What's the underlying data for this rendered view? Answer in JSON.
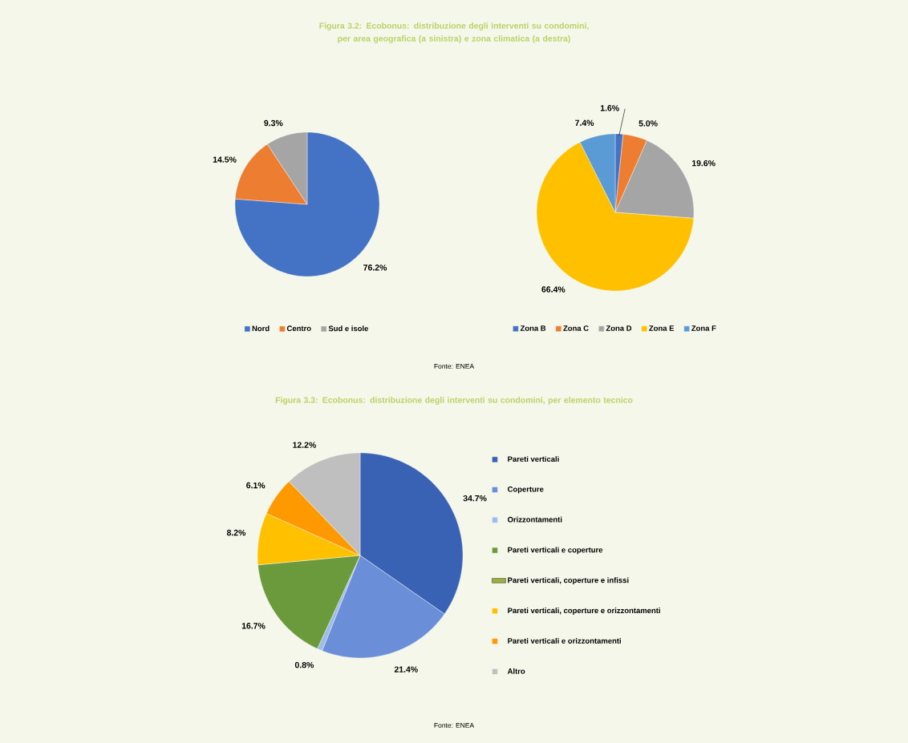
{
  "chart_data": [
    {
      "type": "pie",
      "title": "Figura 3.2: Ecobonus: distribuzione degli interventi su condomini, per area geografica (a sinistra) e zona climatica (a destra)",
      "categories": [
        "Nord",
        "Centro",
        "Sud e isole"
      ],
      "values": [
        76.2,
        14.5,
        9.3
      ],
      "value_labels": [
        "76.2%",
        "14.5%",
        "9.3%"
      ],
      "colors": [
        "#4472c4",
        "#ed7d31",
        "#a5a5a5"
      ],
      "legend": "bottom"
    },
    {
      "type": "pie",
      "categories": [
        "Zona B",
        "Zona C",
        "Zona D",
        "Zona E",
        "Zona F"
      ],
      "values": [
        1.6,
        5.0,
        19.6,
        66.4,
        7.4
      ],
      "value_labels": [
        "1.6%",
        "5.0%",
        "19.6%",
        "66.4%",
        "7.4%"
      ],
      "colors": [
        "#4472c4",
        "#ed7d31",
        "#a5a5a5",
        "#ffc000",
        "#5b9bd5"
      ],
      "legend": "bottom",
      "annotations": [
        "Fonte: ENEA"
      ]
    },
    {
      "type": "pie",
      "title": "Figura 3.3: Ecobonus: distribuzione degli interventi su condomini, per elemento tecnico",
      "categories": [
        "Pareti verticali",
        "Coperture",
        "Orizzontamenti",
        "Pareti verticali e coperture",
        "Pareti verticali, coperture e infissi",
        "Pareti verticali, coperture e orizzontamenti",
        "Pareti verticali e orizzontamenti",
        "Altro"
      ],
      "values": [
        34.7,
        21.4,
        0.8,
        16.7,
        0,
        8.2,
        6.1,
        12.2
      ],
      "value_labels": [
        "34.7%",
        "21.4%",
        "0.8%",
        "16.7%",
        null,
        "8.2%",
        "6.1%",
        "12.2%"
      ],
      "colors": [
        "#3a62b4",
        "#6a8fd8",
        "#9dbce8",
        "#6b9a3c",
        "#9bb040",
        "#ffc000",
        "#ff9900",
        "#bfbfbf"
      ],
      "legend": "right",
      "annotations": [
        "Fonte: ENEA"
      ]
    }
  ]
}
